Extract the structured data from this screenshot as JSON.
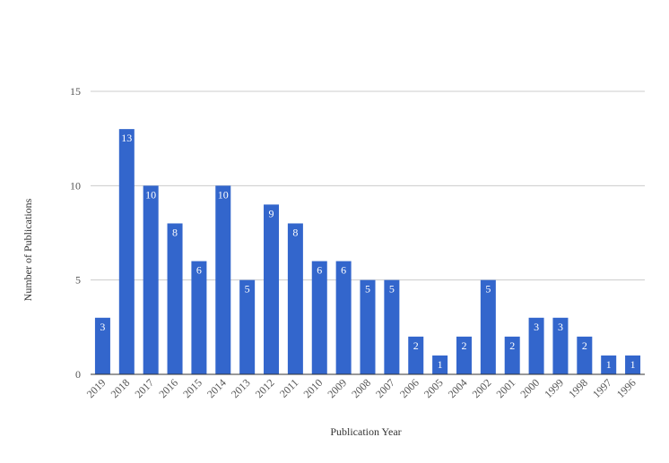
{
  "chart_data": {
    "type": "bar",
    "title": "",
    "xlabel": "Publication Year",
    "ylabel": "Number of Publications",
    "ylim": [
      0,
      15
    ],
    "yticks": [
      0,
      5,
      10,
      15
    ],
    "grid": true,
    "bar_color": "#3366cc",
    "categories": [
      "2019",
      "2018",
      "2017",
      "2016",
      "2015",
      "2014",
      "2013",
      "2012",
      "2011",
      "2010",
      "2009",
      "2008",
      "2007",
      "2006",
      "2005",
      "2004",
      "2002",
      "2001",
      "2000",
      "1999",
      "1998",
      "1997",
      "1996"
    ],
    "values": [
      3,
      13,
      10,
      8,
      6,
      10,
      5,
      9,
      8,
      6,
      6,
      5,
      5,
      2,
      1,
      2,
      5,
      2,
      3,
      3,
      2,
      1,
      1
    ]
  }
}
